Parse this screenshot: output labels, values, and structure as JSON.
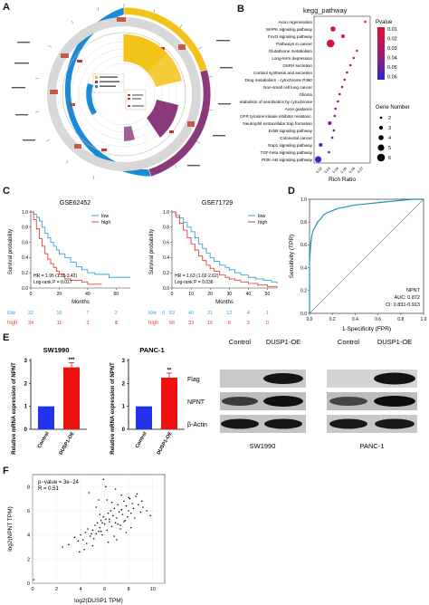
{
  "panels": {
    "a": "A",
    "b": "B",
    "c": "C",
    "d": "D",
    "e": "E",
    "f": "F"
  },
  "panel_b": {
    "title": "kegg_pathway",
    "xlabel": "Rich Ratio",
    "legend_pvalue_title": "Pvalue",
    "pvalue_ticks": [
      "0.01",
      "0.02",
      "0.03",
      "0.04",
      "0.05",
      "0.06"
    ],
    "legend_count_title": "Gene Number",
    "count_ticks": [
      "2",
      "3",
      "4",
      "5",
      "6"
    ],
    "pathways": [
      "Axon regeneration",
      "MAPK signaling pathway",
      "FoxO signaling pathway",
      "Pathways in cancer",
      "Glutathione metabolism",
      "Long-term depression",
      "GnRH secretion",
      "Cortisol synthesis and secretion",
      "Drug metabolism - cytochrome P450",
      "Non-small cell lung cancer",
      "Glioma",
      "Metabolism of xenobiotics by cytochrome",
      "Axon guidance",
      "EGFR tyrosine kinase inhibitor resistanc.",
      "Neutrophil extracellular trap formation",
      "ErbB signaling pathway",
      "Colorectal cancer",
      "Rap1 signaling pathway",
      "TGF-beta signaling pathway",
      "PI3K-Akt signaling pathway"
    ]
  },
  "panel_c": {
    "left": {
      "title": "GSE62452",
      "legend": [
        "low",
        "high"
      ],
      "hr": "HR = 1.95 (1.11-3.42)",
      "logrank": "Log-rank P = 0.017",
      "xlabel": "Months",
      "ylabel": "Survival probability",
      "xticks": [
        "0",
        "20",
        "40",
        "60"
      ],
      "yticks": [
        "0.0",
        "0.2",
        "0.4",
        "0.6",
        "0.8",
        "1.0"
      ],
      "risk_low_label": "low",
      "risk_high_label": "high",
      "risk_low": [
        "32",
        "16",
        "7",
        "2",
        "0"
      ],
      "risk_high": [
        "34",
        "11",
        "3",
        "1",
        "0"
      ]
    },
    "right": {
      "title": "GSE71729",
      "legend": [
        "low",
        "high"
      ],
      "hr": "HR = 1.63 (1.02-2.62)",
      "logrank": "Log-rank P = 0.036",
      "xlabel": "Months",
      "ylabel": "Survival probability",
      "xticks": [
        "0",
        "10",
        "20",
        "30",
        "40",
        "50"
      ],
      "yticks": [
        "0.0",
        "0.2",
        "0.4",
        "0.6",
        "0.8",
        "1.0"
      ],
      "risk_low_label": "low",
      "risk_high_label": "high",
      "risk_low": [
        "53",
        "40",
        "21",
        "12",
        "4",
        "1"
      ],
      "risk_high": [
        "56",
        "33",
        "16",
        "8",
        "3",
        "0"
      ]
    }
  },
  "panel_d": {
    "xlabel": "1-Specificity (FPR)",
    "ylabel": "Sensitivity (TPR)",
    "ticks": [
      "0.0",
      "0.2",
      "0.4",
      "0.6",
      "0.8",
      "1.0"
    ],
    "gene": "NPNT",
    "auc": "AUC: 0.872",
    "ci": "CI: 0.831-0.913"
  },
  "panel_e": {
    "sw1990_title": "SW1990",
    "panc1_title": "PANC-1",
    "ylabel": "Relative mRNA expression of NPNT",
    "yticks": [
      "0",
      "1",
      "2",
      "3"
    ],
    "categories": [
      "Control",
      "DUSP1-OE"
    ],
    "sig_sw1990": "***",
    "sig_panc1": "**",
    "wb_columns": [
      "Control",
      "DUSP1-OE"
    ],
    "wb_rows": [
      "Flag",
      "NPNT",
      "β-Actin"
    ],
    "wb_left_caption": "SW1990",
    "wb_right_caption": "PANC-1"
  },
  "panel_f": {
    "pvalue": "p−value = 3e−24",
    "r": "R = 0.51",
    "xlabel": "log2(DUSP1 TPM)",
    "ylabel": "log2(NPNT TPM)",
    "xticks": [
      "0",
      "2",
      "4",
      "6",
      "8",
      "10"
    ],
    "yticks": [
      "0",
      "2",
      "4",
      "6",
      "8"
    ]
  },
  "colors": {
    "low": "#3b9fd8",
    "high": "#e0443b",
    "blue_bar": "#2233ee",
    "red_bar": "#ee1111",
    "yellow": "#f2c318",
    "purple": "#8a3a7c",
    "circle_blue": "#1a8ad4",
    "roc": "#1f8fb8"
  },
  "chart_data": [
    {
      "type": "scatter",
      "panel": "B",
      "xlabel": "Rich Ratio",
      "categories": [
        "Axon regeneration",
        "MAPK signaling pathway",
        "FoxO signaling pathway",
        "Pathways in cancer",
        "Glutathione metabolism",
        "Long-term depression",
        "GnRH secretion",
        "Cortisol synthesis and secretion",
        "Drug metabolism - cytochrome P450",
        "Non-small cell lung cancer",
        "Glioma",
        "Metabolism of xenobiotics by cytochrome",
        "Axon guidance",
        "EGFR tyrosine kinase inhibitor resistanc.",
        "Neutrophil extracellular trap formation",
        "ErbB signaling pathway",
        "Colorectal cancer",
        "Rap1 signaling pathway",
        "TGF-beta signaling pathway",
        "PI3K-Akt signaling pathway"
      ],
      "rich_ratio": [
        0.072,
        0.033,
        0.045,
        0.03,
        0.062,
        0.058,
        0.054,
        0.05,
        0.047,
        0.044,
        0.041,
        0.039,
        0.036,
        0.035,
        0.029,
        0.034,
        0.032,
        0.018,
        0.028,
        0.015
      ],
      "pvalue": [
        0.005,
        0.012,
        0.01,
        0.013,
        0.018,
        0.022,
        0.026,
        0.028,
        0.03,
        0.032,
        0.034,
        0.036,
        0.04,
        0.042,
        0.044,
        0.046,
        0.05,
        0.055,
        0.06,
        0.065
      ],
      "gene_number": [
        2,
        4,
        3,
        6,
        2,
        2,
        2,
        2,
        2,
        2,
        2,
        2,
        2,
        2,
        3,
        2,
        2,
        3,
        2,
        5
      ]
    },
    {
      "type": "line",
      "panel": "C-GSE62452",
      "title": "GSE62452",
      "xlabel": "Months",
      "ylabel": "Survival probability",
      "xlim": [
        0,
        70
      ],
      "ylim": [
        0,
        1
      ],
      "series": [
        {
          "name": "low",
          "x": [
            0,
            2,
            4,
            6,
            8,
            10,
            12,
            14,
            16,
            18,
            20,
            24,
            28,
            32,
            36,
            40,
            45,
            50,
            55,
            60,
            65,
            70
          ],
          "y": [
            1.0,
            0.97,
            0.93,
            0.88,
            0.8,
            0.72,
            0.66,
            0.6,
            0.55,
            0.5,
            0.45,
            0.4,
            0.34,
            0.28,
            0.24,
            0.2,
            0.18,
            0.18,
            0.14,
            0.14,
            0.14,
            0.14
          ]
        },
        {
          "name": "high",
          "x": [
            0,
            2,
            4,
            6,
            8,
            10,
            12,
            14,
            16,
            18,
            20,
            24,
            28,
            32,
            36,
            40,
            45,
            50
          ],
          "y": [
            1.0,
            0.9,
            0.78,
            0.65,
            0.55,
            0.45,
            0.38,
            0.32,
            0.27,
            0.22,
            0.18,
            0.12,
            0.1,
            0.1,
            0.08,
            0.05,
            0.05,
            0.05
          ]
        }
      ]
    },
    {
      "type": "line",
      "panel": "C-GSE71729",
      "title": "GSE71729",
      "xlabel": "Months",
      "ylabel": "Survival probability",
      "xlim": [
        0,
        55
      ],
      "ylim": [
        0,
        1
      ],
      "series": [
        {
          "name": "low",
          "x": [
            0,
            2,
            4,
            6,
            8,
            10,
            12,
            14,
            16,
            18,
            20,
            22,
            25,
            28,
            30,
            33,
            36,
            40,
            44,
            48,
            52,
            55
          ],
          "y": [
            1.0,
            0.96,
            0.92,
            0.86,
            0.8,
            0.74,
            0.66,
            0.58,
            0.52,
            0.46,
            0.4,
            0.35,
            0.3,
            0.27,
            0.24,
            0.2,
            0.17,
            0.14,
            0.12,
            0.1,
            0.08,
            0.06
          ]
        },
        {
          "name": "high",
          "x": [
            0,
            2,
            4,
            6,
            8,
            10,
            12,
            14,
            16,
            18,
            20,
            22,
            25,
            28,
            30,
            33,
            36,
            40,
            45,
            50,
            55
          ],
          "y": [
            1.0,
            0.93,
            0.85,
            0.76,
            0.66,
            0.58,
            0.5,
            0.42,
            0.36,
            0.3,
            0.26,
            0.22,
            0.17,
            0.14,
            0.12,
            0.1,
            0.08,
            0.06,
            0.04,
            0.02,
            0.0
          ]
        }
      ]
    },
    {
      "type": "line",
      "panel": "D",
      "xlabel": "1-Specificity (FPR)",
      "ylabel": "Sensitivity (TPR)",
      "xlim": [
        0,
        1
      ],
      "ylim": [
        0,
        1
      ],
      "series": [
        {
          "name": "NPNT",
          "x": [
            0,
            0,
            0.01,
            0.02,
            0.03,
            0.05,
            0.07,
            0.1,
            0.12,
            0.15,
            0.2,
            0.25,
            0.3,
            0.4,
            0.5,
            0.6,
            0.7,
            0.8,
            0.9,
            1.0
          ],
          "y": [
            0,
            0.45,
            0.6,
            0.68,
            0.72,
            0.76,
            0.8,
            0.83,
            0.86,
            0.88,
            0.9,
            0.92,
            0.93,
            0.95,
            0.96,
            0.97,
            0.98,
            0.99,
            1.0,
            1.0
          ]
        }
      ]
    },
    {
      "type": "bar",
      "panel": "E-SW1990",
      "title": "SW1990",
      "categories": [
        "Control",
        "DUSP1-OE"
      ],
      "values": [
        1.0,
        2.7
      ],
      "ylim": [
        0,
        3
      ]
    },
    {
      "type": "bar",
      "panel": "E-PANC-1",
      "title": "PANC-1",
      "categories": [
        "Control",
        "DUSP1-OE"
      ],
      "values": [
        1.0,
        2.25
      ],
      "ylim": [
        0,
        3
      ]
    },
    {
      "type": "scatter",
      "panel": "F",
      "xlabel": "log2(DUSP1 TPM)",
      "ylabel": "log2(NPNT TPM)",
      "xlim": [
        0,
        11
      ],
      "ylim": [
        0,
        9
      ],
      "x": [
        0.1,
        2.5,
        3.0,
        3.5,
        3.8,
        4.0,
        4.2,
        4.4,
        4.5,
        4.6,
        4.8,
        5.0,
        5.1,
        5.2,
        5.3,
        5.4,
        5.5,
        5.6,
        5.7,
        5.8,
        5.9,
        6.0,
        6.1,
        6.2,
        6.3,
        6.4,
        6.5,
        6.6,
        6.7,
        6.8,
        6.9,
        7.0,
        7.1,
        7.2,
        7.3,
        7.4,
        7.5,
        7.6,
        7.7,
        7.8,
        7.9,
        8.0,
        8.1,
        8.2,
        8.3,
        8.4,
        8.5,
        8.6,
        8.8,
        9.0,
        9.2,
        9.5,
        9.8,
        4.7,
        5.5,
        6.3,
        7.1,
        7.8,
        6.9,
        5.9,
        5.0,
        4.3,
        6.6,
        7.4,
        8.2,
        5.7,
        6.1,
        7.6,
        8.7,
        3.9,
        6.8,
        5.3,
        7.0,
        6.4,
        9.1,
        4.9,
        5.8,
        7.3,
        8.0,
        6.2,
        5.6
      ],
      "y": [
        0.3,
        3.0,
        3.2,
        3.8,
        3.5,
        4.0,
        3.6,
        4.2,
        3.3,
        4.5,
        3.9,
        4.4,
        3.7,
        4.8,
        4.1,
        5.0,
        4.3,
        4.6,
        5.2,
        4.0,
        5.5,
        4.9,
        5.3,
        4.4,
        5.8,
        5.1,
        6.0,
        4.7,
        5.6,
        6.2,
        5.0,
        5.4,
        6.5,
        5.9,
        4.8,
        6.1,
        5.7,
        6.8,
        5.2,
        6.4,
        5.5,
        6.0,
        7.0,
        5.8,
        6.6,
        6.2,
        5.4,
        7.2,
        6.5,
        5.9,
        6.3,
        6.0,
        5.6,
        7.5,
        6.9,
        3.4,
        4.9,
        4.2,
        7.8,
        8.6,
        3.1,
        2.8,
        6.7,
        7.3,
        4.6,
        4.3,
        8.0,
        5.1,
        7.4,
        2.6,
        3.9,
        6.3,
        3.6,
        5.3,
        6.8,
        4.1,
        5.0,
        4.5,
        7.1,
        6.9,
        5.7
      ],
      "annotations": [
        "p−value = 3e−24",
        "R = 0.51"
      ]
    }
  ]
}
